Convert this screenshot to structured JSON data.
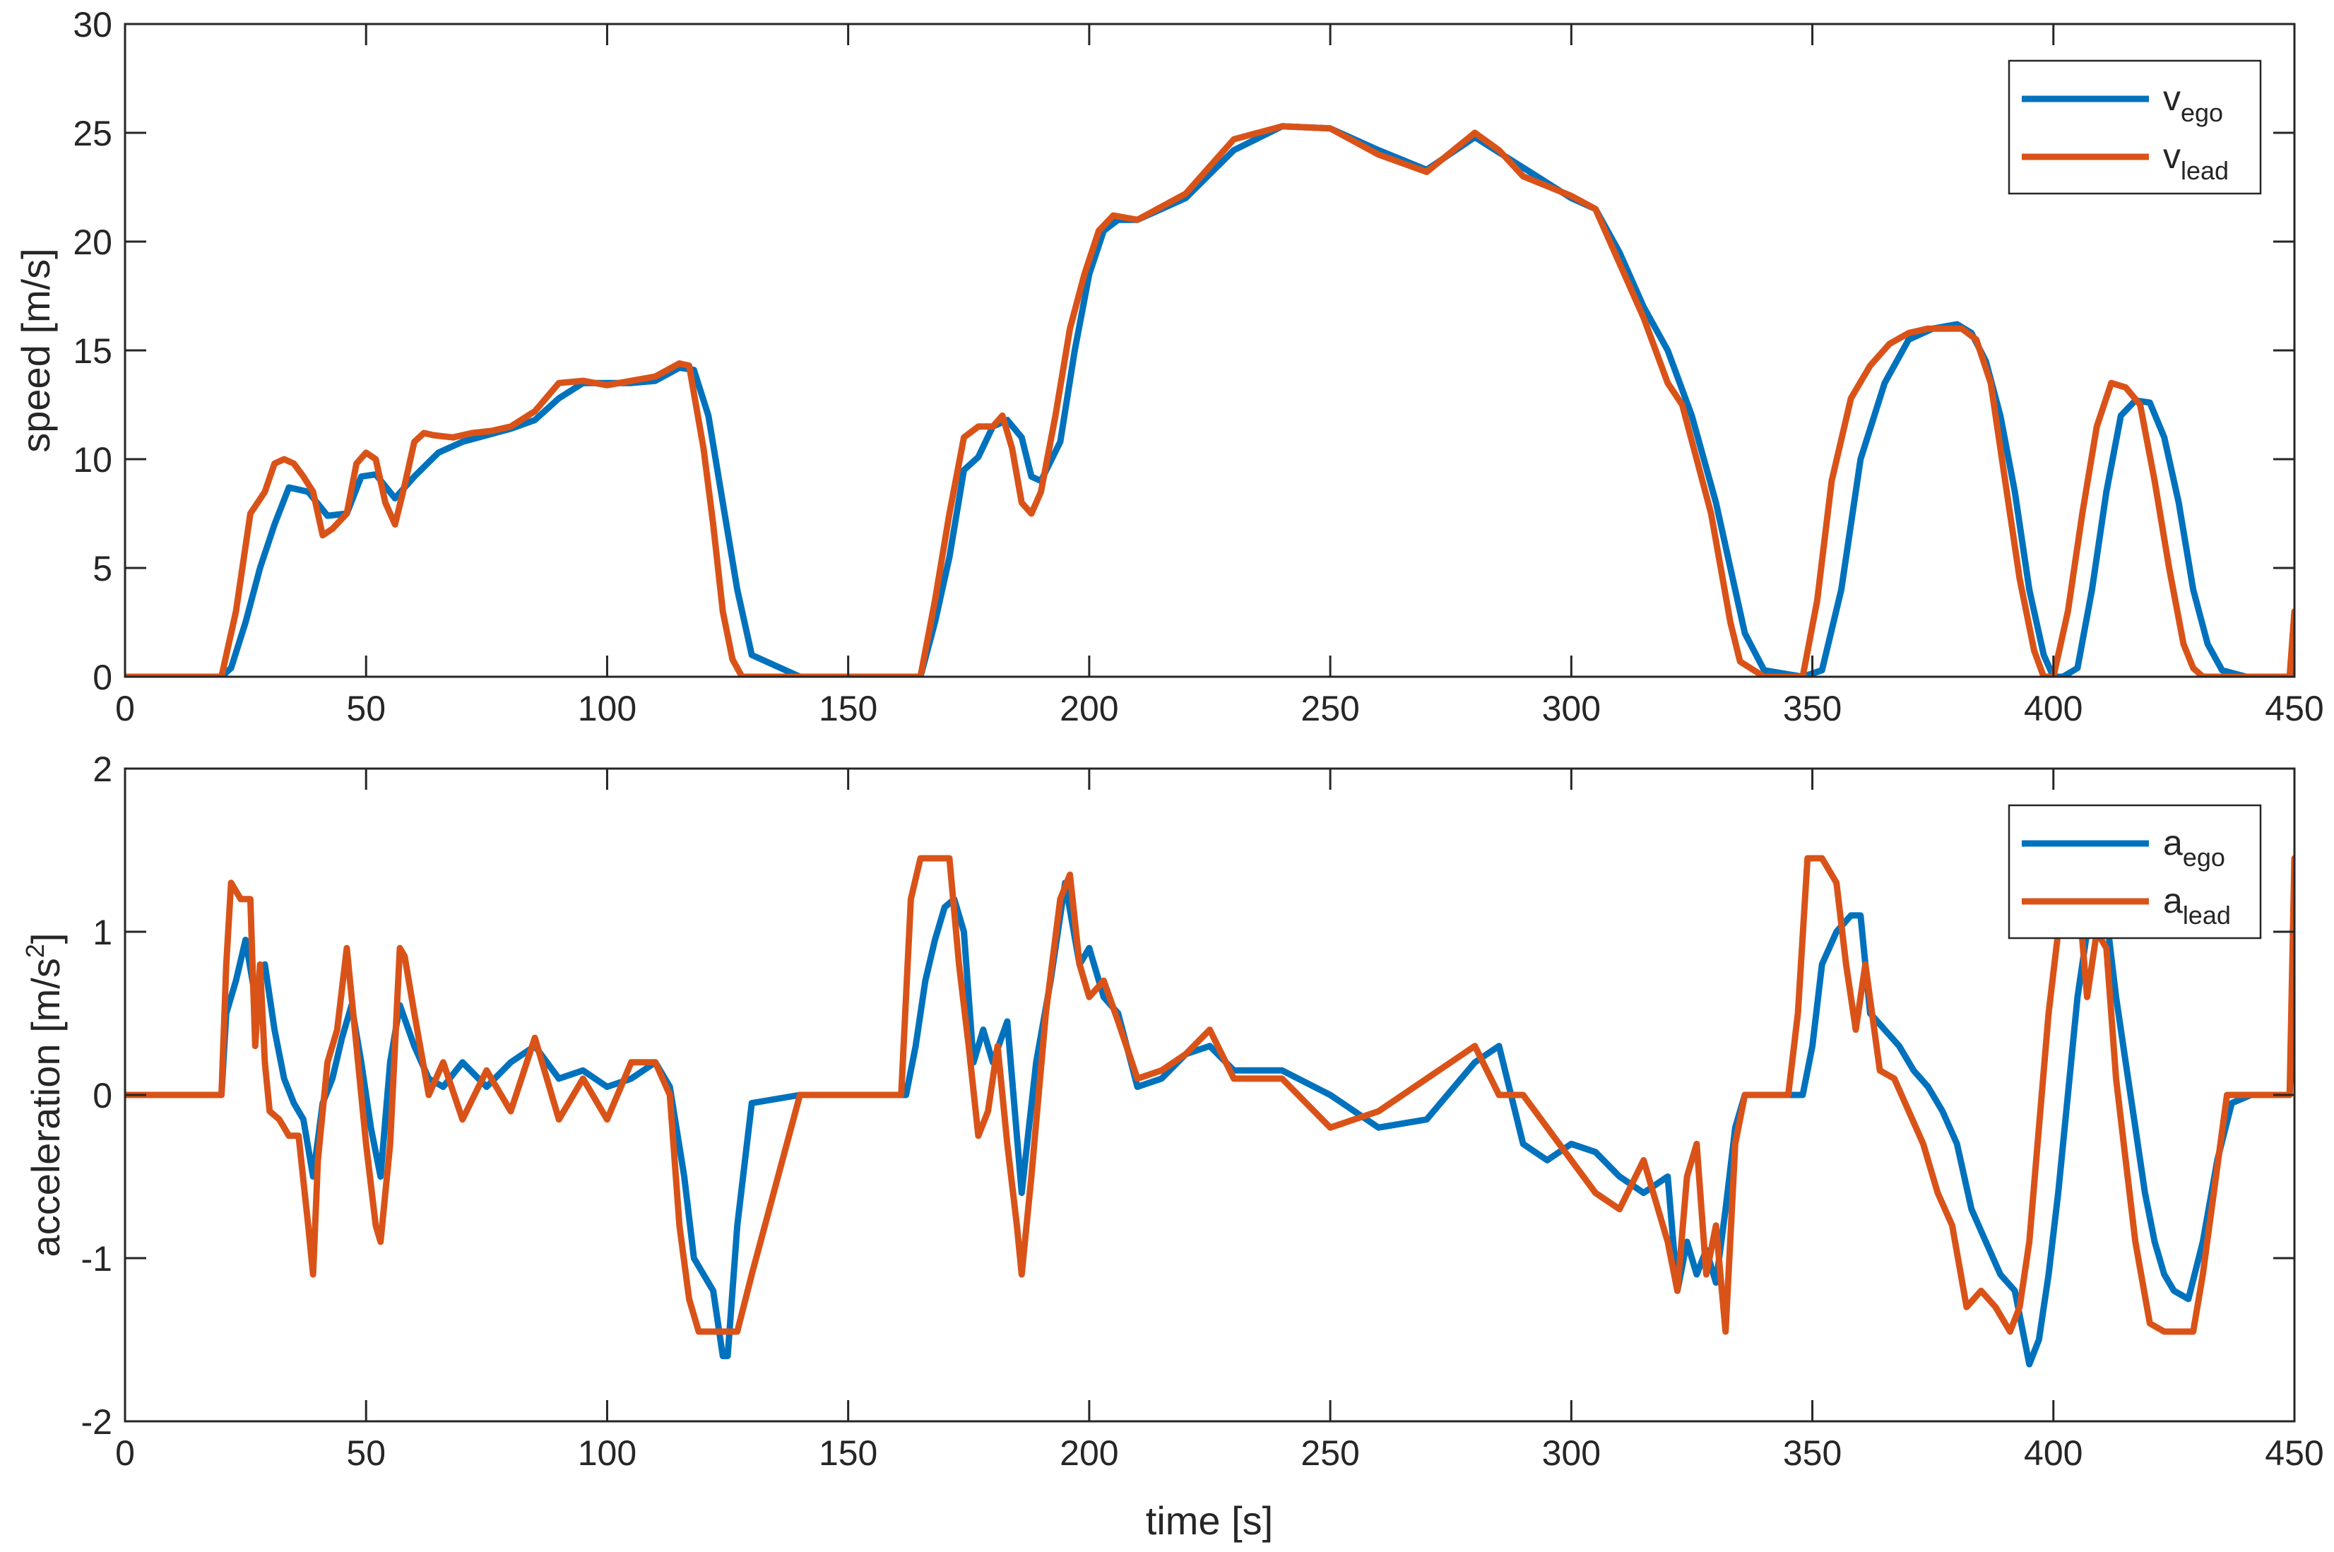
{
  "chart_data": [
    {
      "type": "line",
      "xlabel": "",
      "ylabel": "speed [m/s]",
      "xlim": [
        0,
        450
      ],
      "ylim": [
        0,
        30
      ],
      "xticks": [
        0,
        50,
        100,
        150,
        200,
        250,
        300,
        350,
        400,
        450
      ],
      "yticks": [
        0,
        5,
        10,
        15,
        20,
        25,
        30
      ],
      "grid": false,
      "legend_position": "top-right",
      "series": [
        {
          "name_base": "v",
          "name_sub": "ego",
          "color": "#0072BD",
          "x": [
            0,
            20,
            22,
            25,
            28,
            31,
            34,
            38,
            42,
            46,
            49,
            52,
            56,
            60,
            65,
            70,
            75,
            80,
            85,
            90,
            95,
            100,
            105,
            110,
            115,
            118,
            121,
            124,
            127,
            130,
            140,
            160,
            165,
            168,
            171,
            174,
            177,
            180,
            183,
            186,
            188,
            190,
            194,
            197,
            200,
            203,
            206,
            210,
            220,
            230,
            240,
            250,
            260,
            270,
            280,
            290,
            300,
            305,
            310,
            315,
            320,
            325,
            330,
            333,
            336,
            340,
            348,
            352,
            356,
            360,
            365,
            370,
            375,
            380,
            383,
            386,
            389,
            392,
            395,
            398,
            400,
            402,
            405,
            408,
            411,
            414,
            417,
            420,
            423,
            426,
            429,
            432,
            435,
            440,
            449,
            450
          ],
          "y": [
            0,
            0,
            0.4,
            2.5,
            5,
            7,
            8.7,
            8.5,
            7.4,
            7.5,
            9.2,
            9.3,
            8.2,
            9.2,
            10.3,
            10.8,
            11.1,
            11.4,
            11.8,
            12.8,
            13.5,
            13.5,
            13.5,
            13.6,
            14.2,
            14.1,
            12,
            8,
            4,
            1,
            0,
            0,
            0,
            2.5,
            5.5,
            9.5,
            10.1,
            11.5,
            11.8,
            11,
            9.2,
            9,
            10.8,
            15,
            18.5,
            20.5,
            21,
            21,
            22,
            24.2,
            25.3,
            25.2,
            24.2,
            23.3,
            24.8,
            23.4,
            22,
            21.5,
            19.5,
            17,
            15,
            12,
            8,
            5,
            2,
            0.3,
            0,
            0.3,
            4,
            10,
            13.5,
            15.5,
            16,
            16.2,
            15.8,
            14.5,
            12,
            8.5,
            4,
            1,
            0,
            0,
            0.4,
            4,
            8.5,
            12,
            12.7,
            12.6,
            11,
            8,
            4,
            1.5,
            0.3,
            0,
            0,
            0.8
          ]
        },
        {
          "name_base": "v",
          "name_sub": "lead",
          "color": "#D95319",
          "x": [
            0,
            20,
            23,
            26,
            29,
            31,
            33,
            35,
            37,
            39,
            41,
            43,
            46,
            48,
            50,
            52,
            54,
            56,
            58,
            60,
            62,
            64,
            68,
            72,
            76,
            80,
            85,
            90,
            95,
            100,
            105,
            110,
            115,
            117,
            120,
            122,
            124,
            126,
            128,
            130,
            140,
            162,
            165,
            168,
            171,
            174,
            177,
            180,
            182,
            184,
            186,
            188,
            190,
            193,
            196,
            199,
            202,
            205,
            210,
            220,
            230,
            240,
            250,
            260,
            270,
            280,
            285,
            290,
            300,
            305,
            310,
            315,
            320,
            323,
            326,
            329,
            331,
            333,
            335,
            340,
            346,
            348,
            351,
            354,
            358,
            362,
            366,
            370,
            374,
            378,
            381,
            384,
            387,
            390,
            393,
            396,
            398,
            400,
            403,
            406,
            409,
            412,
            415,
            418,
            421,
            424,
            427,
            429,
            431,
            435,
            449,
            450
          ],
          "y": [
            0,
            0,
            3,
            7.5,
            8.5,
            9.8,
            10,
            9.8,
            9.2,
            8.5,
            6.5,
            6.8,
            7.5,
            9.8,
            10.3,
            10,
            8,
            7,
            8.8,
            10.8,
            11.2,
            11.1,
            11,
            11.2,
            11.3,
            11.5,
            12.2,
            13.5,
            13.6,
            13.4,
            13.6,
            13.8,
            14.4,
            14.3,
            10.5,
            7,
            3,
            0.8,
            0,
            0,
            0,
            0,
            0,
            3.5,
            7.5,
            11,
            11.5,
            11.5,
            12,
            10.5,
            8,
            7.5,
            8.5,
            12,
            16,
            18.5,
            20.5,
            21.2,
            21,
            22.2,
            24.7,
            25.3,
            25.2,
            24,
            23.2,
            25,
            24.2,
            23,
            22.1,
            21.5,
            19,
            16.5,
            13.5,
            12.5,
            10,
            7.5,
            5,
            2.5,
            0.7,
            0,
            0,
            0,
            3.5,
            9,
            12.8,
            14.3,
            15.3,
            15.8,
            16,
            16,
            16,
            15.5,
            13.5,
            9,
            4.5,
            1.2,
            0,
            0,
            3,
            7.5,
            11.5,
            13.5,
            13.3,
            12.5,
            9,
            5,
            1.5,
            0.4,
            0,
            0,
            0,
            3
          ]
        }
      ]
    },
    {
      "type": "line",
      "xlabel": "time [s]",
      "ylabel_base": "acceleration [m/s",
      "ylabel_sup": "2",
      "ylabel_end": "]",
      "xlim": [
        0,
        450
      ],
      "ylim": [
        -2,
        2
      ],
      "xticks": [
        0,
        50,
        100,
        150,
        200,
        250,
        300,
        350,
        400,
        450
      ],
      "yticks": [
        -2,
        -1,
        0,
        1,
        2
      ],
      "grid": false,
      "legend_position": "top-right",
      "series": [
        {
          "name_base": "a",
          "name_sub": "ego",
          "color": "#0072BD",
          "x": [
            0,
            20,
            21,
            23,
            25,
            27,
            29,
            31,
            33,
            35,
            37,
            39,
            41,
            43,
            45,
            47,
            49,
            51,
            53,
            55,
            57,
            60,
            63,
            66,
            70,
            75,
            80,
            85,
            90,
            95,
            100,
            105,
            110,
            113,
            116,
            118,
            120,
            122,
            124,
            125,
            127,
            130,
            140,
            162,
            164,
            166,
            168,
            170,
            172,
            174,
            176,
            178,
            180,
            183,
            186,
            189,
            192,
            195,
            198,
            200,
            203,
            206,
            210,
            215,
            220,
            225,
            230,
            240,
            250,
            260,
            270,
            280,
            285,
            290,
            295,
            300,
            305,
            310,
            315,
            320,
            322,
            324,
            326,
            328,
            330,
            332,
            334,
            336,
            338,
            342,
            348,
            350,
            352,
            355,
            358,
            360,
            362,
            365,
            368,
            371,
            374,
            377,
            380,
            383,
            386,
            389,
            392,
            395,
            397,
            399,
            401,
            403,
            405,
            407,
            409,
            411,
            413,
            415,
            417,
            419,
            421,
            423,
            425,
            428,
            431,
            434,
            437,
            441,
            449,
            450
          ],
          "y": [
            0,
            0,
            0.5,
            0.7,
            0.95,
            0.6,
            0.8,
            0.4,
            0.1,
            -0.05,
            -0.15,
            -0.5,
            -0.05,
            0.1,
            0.35,
            0.55,
            0.2,
            -0.2,
            -0.5,
            0.2,
            0.55,
            0.3,
            0.1,
            0.05,
            0.2,
            0.05,
            0.2,
            0.3,
            0.1,
            0.15,
            0.05,
            0.1,
            0.2,
            0.05,
            -0.5,
            -1,
            -1.1,
            -1.2,
            -1.6,
            -1.6,
            -0.8,
            -0.05,
            0,
            0,
            0.3,
            0.7,
            0.95,
            1.15,
            1.2,
            1,
            0.2,
            0.4,
            0.2,
            0.45,
            -0.6,
            0.2,
            0.7,
            1.3,
            0.8,
            0.9,
            0.6,
            0.5,
            0.05,
            0.1,
            0.25,
            0.3,
            0.15,
            0.15,
            0,
            -0.2,
            -0.15,
            0.2,
            0.3,
            -0.3,
            -0.4,
            -0.3,
            -0.35,
            -0.5,
            -0.6,
            -0.5,
            -1.2,
            -0.9,
            -1.1,
            -0.95,
            -1.15,
            -0.7,
            -0.2,
            0,
            0,
            0,
            0,
            0.3,
            0.8,
            1,
            1.1,
            1.1,
            0.5,
            0.4,
            0.3,
            0.15,
            0.05,
            -0.1,
            -0.3,
            -0.7,
            -0.9,
            -1.1,
            -1.2,
            -1.65,
            -1.5,
            -1.1,
            -0.6,
            0,
            0.6,
            1,
            1.15,
            1.1,
            0.6,
            0.2,
            -0.2,
            -0.6,
            -0.9,
            -1.1,
            -1.2,
            -1.25,
            -0.9,
            -0.4,
            -0.05,
            0,
            0,
            0.8
          ]
        },
        {
          "name_base": "a",
          "name_sub": "lead",
          "color": "#D95319",
          "x": [
            0,
            20,
            21,
            22,
            24,
            26,
            27,
            28,
            29,
            30,
            32,
            34,
            36,
            38,
            39,
            40,
            42,
            44,
            46,
            48,
            50,
            52,
            53,
            55,
            57,
            58,
            60,
            63,
            66,
            70,
            75,
            80,
            85,
            90,
            95,
            100,
            105,
            110,
            113,
            115,
            117,
            119,
            121,
            124,
            127,
            130,
            140,
            161,
            163,
            165,
            169,
            171,
            173,
            175,
            177,
            179,
            181,
            183,
            185,
            186,
            188,
            191,
            194,
            196,
            198,
            200,
            203,
            206,
            210,
            215,
            220,
            225,
            230,
            240,
            250,
            260,
            270,
            280,
            285,
            290,
            295,
            300,
            305,
            310,
            315,
            320,
            322,
            324,
            326,
            328,
            330,
            332,
            334,
            336,
            340,
            345,
            347,
            349,
            352,
            355,
            357,
            359,
            361,
            364,
            367,
            370,
            373,
            376,
            379,
            382,
            385,
            388,
            391,
            393,
            395,
            397,
            399,
            401,
            403,
            405,
            407,
            409,
            411,
            413,
            415,
            417,
            420,
            423,
            425,
            427,
            429,
            431,
            436,
            449,
            450
          ],
          "y": [
            0,
            0,
            0.8,
            1.3,
            1.2,
            1.2,
            0.3,
            0.8,
            0.2,
            -0.1,
            -0.15,
            -0.25,
            -0.25,
            -0.8,
            -1.1,
            -0.4,
            0.2,
            0.4,
            0.9,
            0.3,
            -0.3,
            -0.8,
            -0.9,
            -0.3,
            0.9,
            0.85,
            0.5,
            0,
            0.2,
            -0.15,
            0.15,
            -0.1,
            0.35,
            -0.15,
            0.1,
            -0.15,
            0.2,
            0.2,
            0,
            -0.8,
            -1.25,
            -1.45,
            -1.45,
            -1.45,
            -1.45,
            -1.1,
            0,
            0,
            1.2,
            1.45,
            1.45,
            1.45,
            0.8,
            0.3,
            -0.25,
            -0.1,
            0.3,
            -0.3,
            -0.8,
            -1.1,
            -0.5,
            0.5,
            1.2,
            1.35,
            0.8,
            0.6,
            0.7,
            0.45,
            0.1,
            0.15,
            0.25,
            0.4,
            0.1,
            0.1,
            -0.2,
            -0.1,
            0.1,
            0.3,
            0,
            0,
            -0.2,
            -0.4,
            -0.6,
            -0.7,
            -0.4,
            -0.9,
            -1.2,
            -0.5,
            -0.3,
            -1.1,
            -0.8,
            -1.45,
            -0.3,
            0,
            0,
            0,
            0.5,
            1.45,
            1.45,
            1.3,
            0.8,
            0.4,
            0.8,
            0.15,
            0.1,
            -0.1,
            -0.3,
            -0.6,
            -0.8,
            -1.3,
            -1.2,
            -1.3,
            -1.45,
            -1.3,
            -0.9,
            -0.2,
            0.5,
            1,
            1.3,
            1.3,
            0.6,
            1,
            0.9,
            0.1,
            -0.4,
            -0.9,
            -1.4,
            -1.45,
            -1.45,
            -1.45,
            -1.45,
            -1.1,
            0,
            0,
            1.45
          ]
        }
      ]
    }
  ]
}
